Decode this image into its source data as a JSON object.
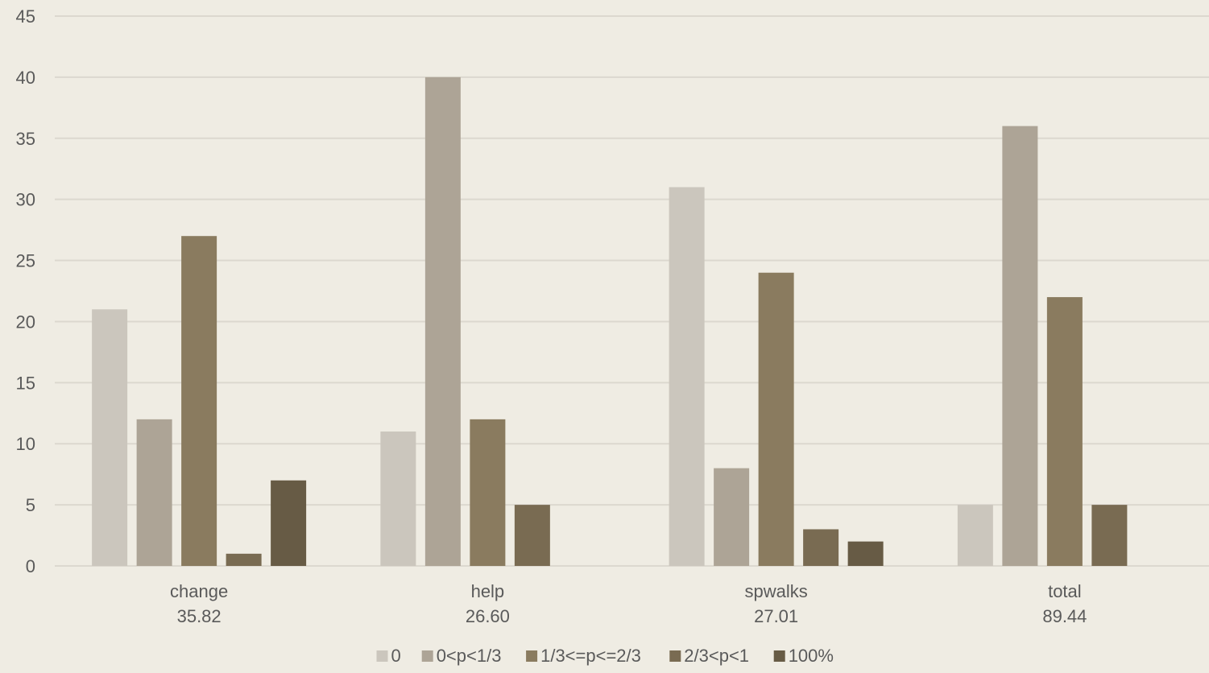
{
  "chart_data": {
    "type": "bar",
    "categories": [
      {
        "name": "change",
        "sub": "35.82"
      },
      {
        "name": "help",
        "sub": "26.60"
      },
      {
        "name": "spwalks",
        "sub": "27.01"
      },
      {
        "name": "total",
        "sub": "89.44"
      }
    ],
    "series": [
      {
        "name": "0",
        "color": "#cbc6bd",
        "values": [
          21,
          11,
          31,
          5
        ]
      },
      {
        "name": "0<p<1/3",
        "color": "#ada496",
        "values": [
          12,
          40,
          8,
          36
        ]
      },
      {
        "name": "1/3<=p<=2/3",
        "color": "#8a7b5f",
        "values": [
          27,
          12,
          24,
          22
        ]
      },
      {
        "name": "2/3<p<1",
        "color": "#796b52",
        "values": [
          1,
          5,
          3,
          5
        ]
      },
      {
        "name": "100%",
        "color": "#675b45",
        "values": [
          7,
          0,
          2,
          0
        ]
      }
    ],
    "ylim": [
      0,
      45
    ],
    "yticks": [
      0,
      5,
      10,
      15,
      20,
      25,
      30,
      35,
      40,
      45
    ],
    "grid": true,
    "legend": "bottom"
  }
}
